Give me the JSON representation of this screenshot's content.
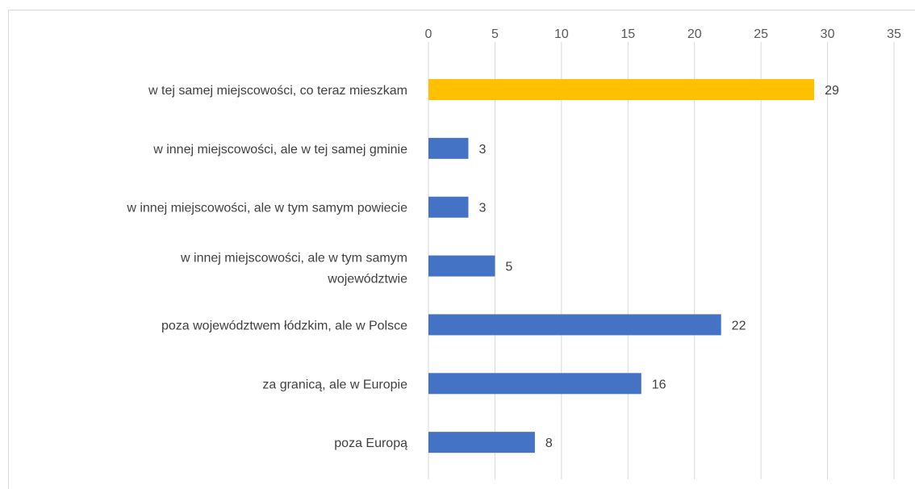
{
  "chart_data": {
    "type": "bar",
    "orientation": "horizontal",
    "categories": [
      "w tej samej miejscowości, co teraz mieszkam",
      "w innej miejscowości, ale w tej samej gminie",
      "w innej miejscowości, ale w tym samym powiecie",
      "w innej miejscowości, ale w tym samym województwie",
      "poza województwem łódzkim, ale w Polsce",
      "za granicą, ale w Europie",
      "poza Europą"
    ],
    "category_lines": [
      [
        "w tej samej miejscowości, co teraz mieszkam"
      ],
      [
        "w innej miejscowości, ale w tej samej gminie"
      ],
      [
        "w innej miejscowości, ale w tym samym powiecie"
      ],
      [
        "w innej miejscowości, ale w tym samym",
        "województwie"
      ],
      [
        "poza województwem łódzkim, ale w Polsce"
      ],
      [
        "za granicą, ale w Europie"
      ],
      [
        "poza Europą"
      ]
    ],
    "values": [
      29,
      3,
      3,
      5,
      22,
      16,
      8
    ],
    "data_labels": [
      "29",
      "3",
      "3",
      "5",
      "22",
      "16",
      "8"
    ],
    "highlight_index": 0,
    "xlim": [
      0,
      35
    ],
    "xticks": [
      0,
      5,
      10,
      15,
      20,
      25,
      30,
      35
    ],
    "xtick_labels": [
      "0",
      "5",
      "10",
      "15",
      "20",
      "25",
      "30",
      "35"
    ],
    "axis_position": "top",
    "grid": true,
    "legend": "none",
    "title": "",
    "xlabel": "",
    "ylabel": ""
  },
  "colors": {
    "bar": "#4472c4",
    "highlight": "#ffc000",
    "grid": "#d9d9d9",
    "text": "#404040",
    "tick_text": "#595959"
  }
}
